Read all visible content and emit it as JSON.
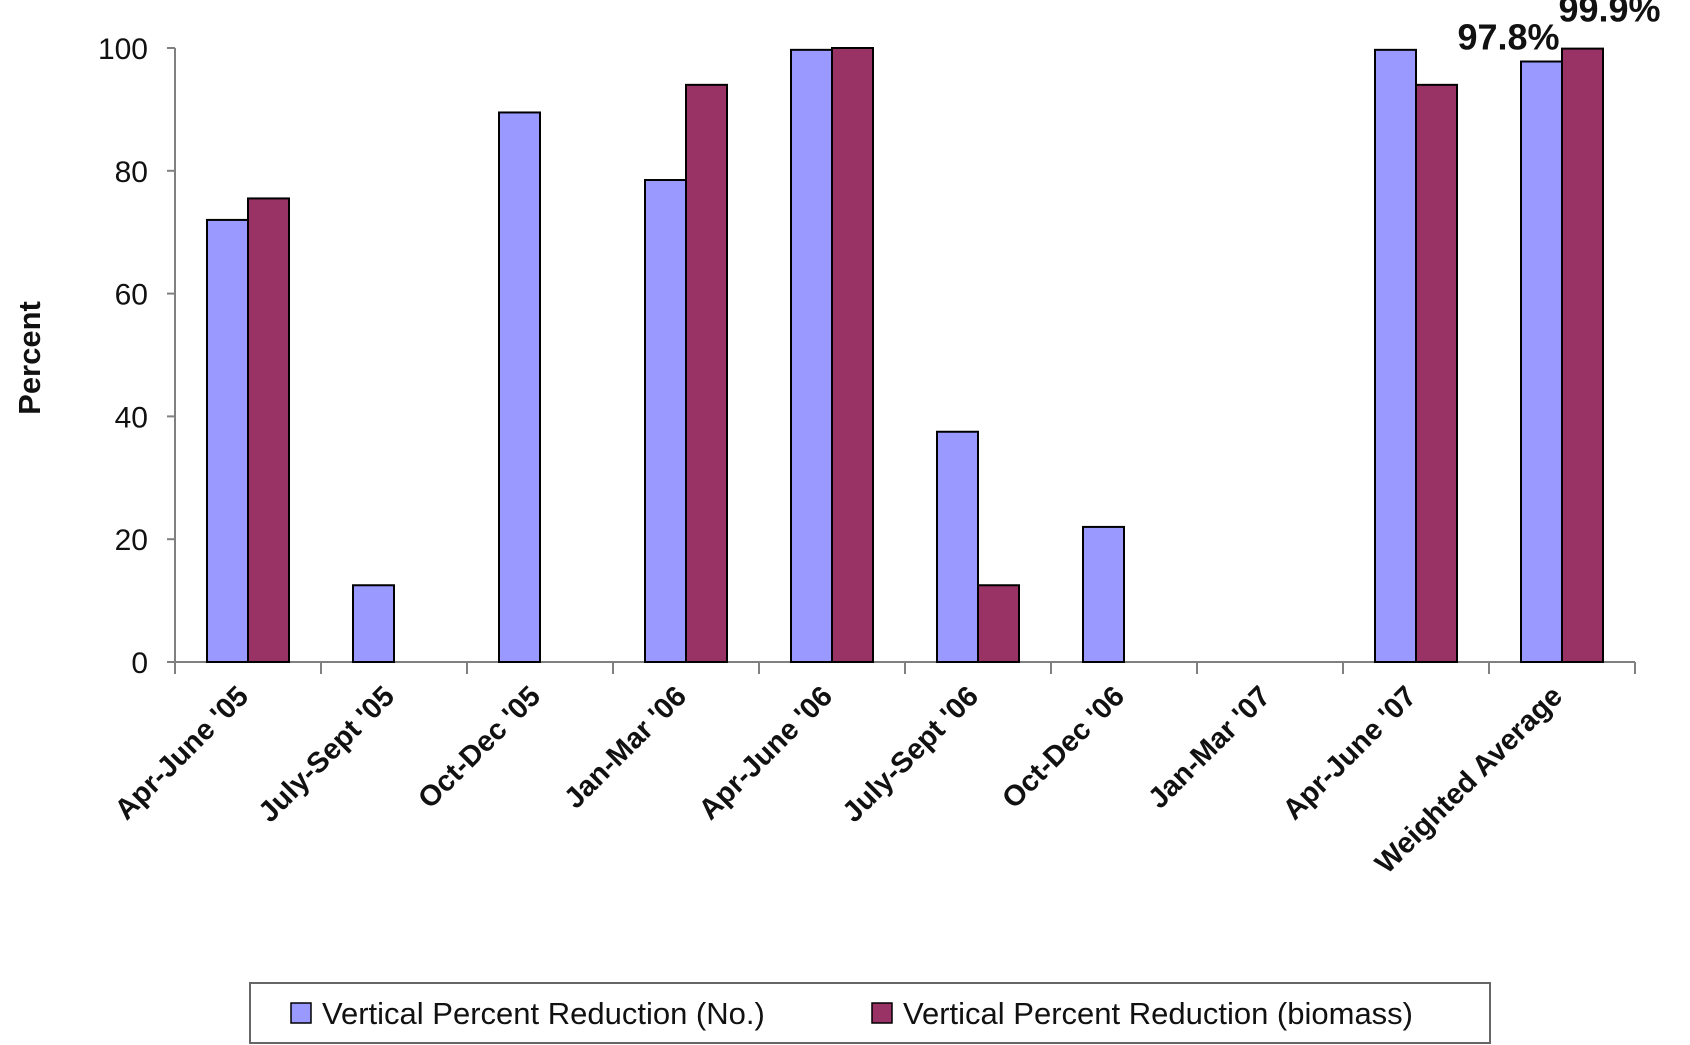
{
  "chart_data": {
    "type": "bar",
    "title": "",
    "xlabel": "",
    "ylabel": "Percent",
    "ylim": [
      0,
      100
    ],
    "yticks": [
      0,
      20,
      40,
      60,
      80,
      100
    ],
    "grid": false,
    "legend_position": "bottom",
    "categories": [
      "Apr-June '05",
      "July-Sept '05",
      "Oct-Dec '05",
      "Jan-Mar '06",
      "Apr-June '06",
      "July-Sept '06",
      "Oct-Dec '06",
      "Jan-Mar '07",
      "Apr-June '07",
      "Weighted Average"
    ],
    "series": [
      {
        "name": "Vertical Percent Reduction (No.)",
        "color": "#9999FF",
        "values": [
          72,
          12.5,
          89.5,
          78.5,
          99.7,
          37.5,
          22,
          null,
          99.7,
          97.8
        ]
      },
      {
        "name": "Vertical Percent Reduction (biomass)",
        "color": "#993366",
        "values": [
          75.5,
          null,
          null,
          94,
          100,
          12.5,
          null,
          null,
          94,
          99.9
        ]
      }
    ],
    "annotations": [
      {
        "text": "97.8%",
        "category": "Weighted Average",
        "series": 0
      },
      {
        "text": "99.9%",
        "category": "Weighted Average",
        "series": 1
      }
    ]
  }
}
